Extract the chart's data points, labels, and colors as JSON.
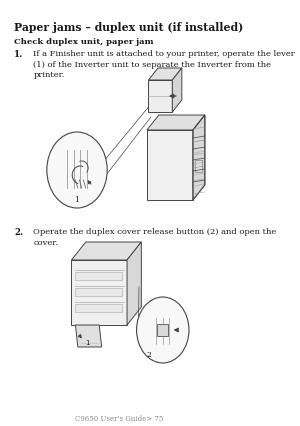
{
  "bg_color": "#ffffff",
  "title": "Paper jams – duplex unit (if installed)",
  "subtitle": "Check duplex unit, paper jam",
  "step1_num": "1.",
  "step1_text": "If a Finisher unit is attached to your printer, operate the lever\n(1) of the Inverter unit to separate the Inverter from the\nprinter.",
  "step2_num": "2.",
  "step2_text": "Operate the duplex cover release button (2) and open the\ncover.",
  "footer": "C9650 User’s Guide> 75",
  "text_color": "#1a1a1a",
  "gray_light": "#e8e8e8",
  "gray_mid": "#cccccc",
  "gray_dark": "#888888",
  "line_color": "#444444"
}
